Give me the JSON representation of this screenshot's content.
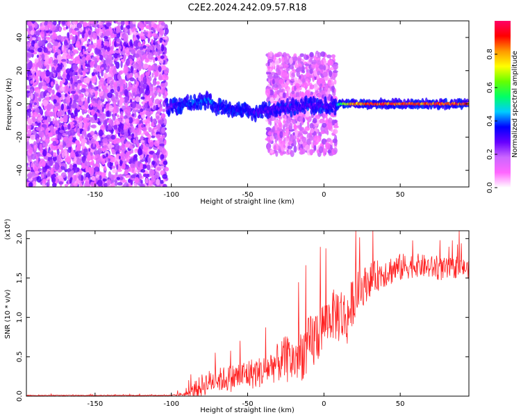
{
  "title": "C2E2.2024.242.09.57.R18",
  "chart_data": [
    {
      "type": "heatmap",
      "xlabel": "Height of straight line (km)",
      "ylabel": "Frequency (Hz)",
      "xlim": [
        -195,
        95
      ],
      "ylim": [
        -50,
        50
      ],
      "xticks": [
        -150,
        -100,
        -50,
        0,
        50
      ],
      "yticks": [
        -40,
        -20,
        0,
        20,
        40
      ],
      "colorbar": {
        "label": "Normalized spectral amplitude",
        "range": [
          0.0,
          1.0
        ],
        "ticks": [
          0.0,
          0.2,
          0.4,
          0.6,
          0.8
        ],
        "colors": [
          "#ffffff",
          "#ff66ff",
          "#cc66ff",
          "#6600ff",
          "#0000ff",
          "#00ccff",
          "#00ff66",
          "#66ff00",
          "#ffff00",
          "#ff9900",
          "#ff0000",
          "#ff0066"
        ]
      },
      "ridge": {
        "x": [
          -103,
          -95,
          -85,
          -75,
          -70,
          -60,
          -50,
          -45,
          -40,
          -30,
          -20,
          -10,
          0,
          8,
          10,
          20,
          30,
          50,
          70,
          95
        ],
        "y": [
          -2,
          -1,
          1,
          2,
          -2,
          -3,
          -4,
          -5,
          -4,
          -3,
          -2,
          -1,
          -1,
          -2,
          0,
          0,
          0,
          0,
          0,
          0
        ],
        "amplitude": [
          0.25,
          0.35,
          0.4,
          0.45,
          0.35,
          0.35,
          0.35,
          0.3,
          0.3,
          0.3,
          0.3,
          0.3,
          0.3,
          0.3,
          0.55,
          0.85,
          0.9,
          0.9,
          0.9,
          0.9
        ]
      },
      "noise_regions": [
        {
          "x": [
            -195,
            -103
          ],
          "y": [
            -50,
            50
          ],
          "amplitude": 0.15
        },
        {
          "x": [
            -37,
            8
          ],
          "y": [
            -30,
            30
          ],
          "amplitude": 0.12
        }
      ]
    },
    {
      "type": "line",
      "xlabel": "Height of straight line (km)",
      "ylabel": "SNR (10 * v/v)",
      "multiplier": "(x10⁴)",
      "xlim": [
        -195,
        95
      ],
      "ylim": [
        0.0,
        2.1
      ],
      "xticks": [
        -150,
        -100,
        -50,
        0,
        50
      ],
      "yticks": [
        0.0,
        0.5,
        1.0,
        1.5,
        2.0
      ],
      "series": [
        {
          "color": "#ff2020",
          "x": [
            -195,
            -150,
            -100,
            -90,
            -85,
            -80,
            -75,
            -70,
            -60,
            -50,
            -40,
            -35,
            -30,
            -25,
            -20,
            -15,
            -10,
            -5,
            0,
            5,
            10,
            15,
            20,
            25,
            30,
            35,
            40,
            50,
            60,
            70,
            80,
            90,
            95
          ],
          "y": [
            0.01,
            0.01,
            0.01,
            0.03,
            0.08,
            0.15,
            0.2,
            0.22,
            0.25,
            0.3,
            0.33,
            0.4,
            0.45,
            0.5,
            0.48,
            0.58,
            0.65,
            0.8,
            0.95,
            1.05,
            1.1,
            1.0,
            1.3,
            1.4,
            1.5,
            1.55,
            1.6,
            1.65,
            1.68,
            1.65,
            1.62,
            1.65,
            1.62
          ],
          "spread": [
            0.005,
            0.005,
            0.005,
            0.03,
            0.1,
            0.15,
            0.15,
            0.15,
            0.18,
            0.2,
            0.2,
            0.22,
            0.25,
            0.3,
            0.3,
            0.35,
            0.4,
            0.4,
            0.3,
            0.3,
            0.4,
            0.35,
            0.3,
            0.25,
            0.22,
            0.2,
            0.2,
            0.18,
            0.15,
            0.15,
            0.15,
            0.12,
            0.12
          ]
        }
      ]
    }
  ]
}
